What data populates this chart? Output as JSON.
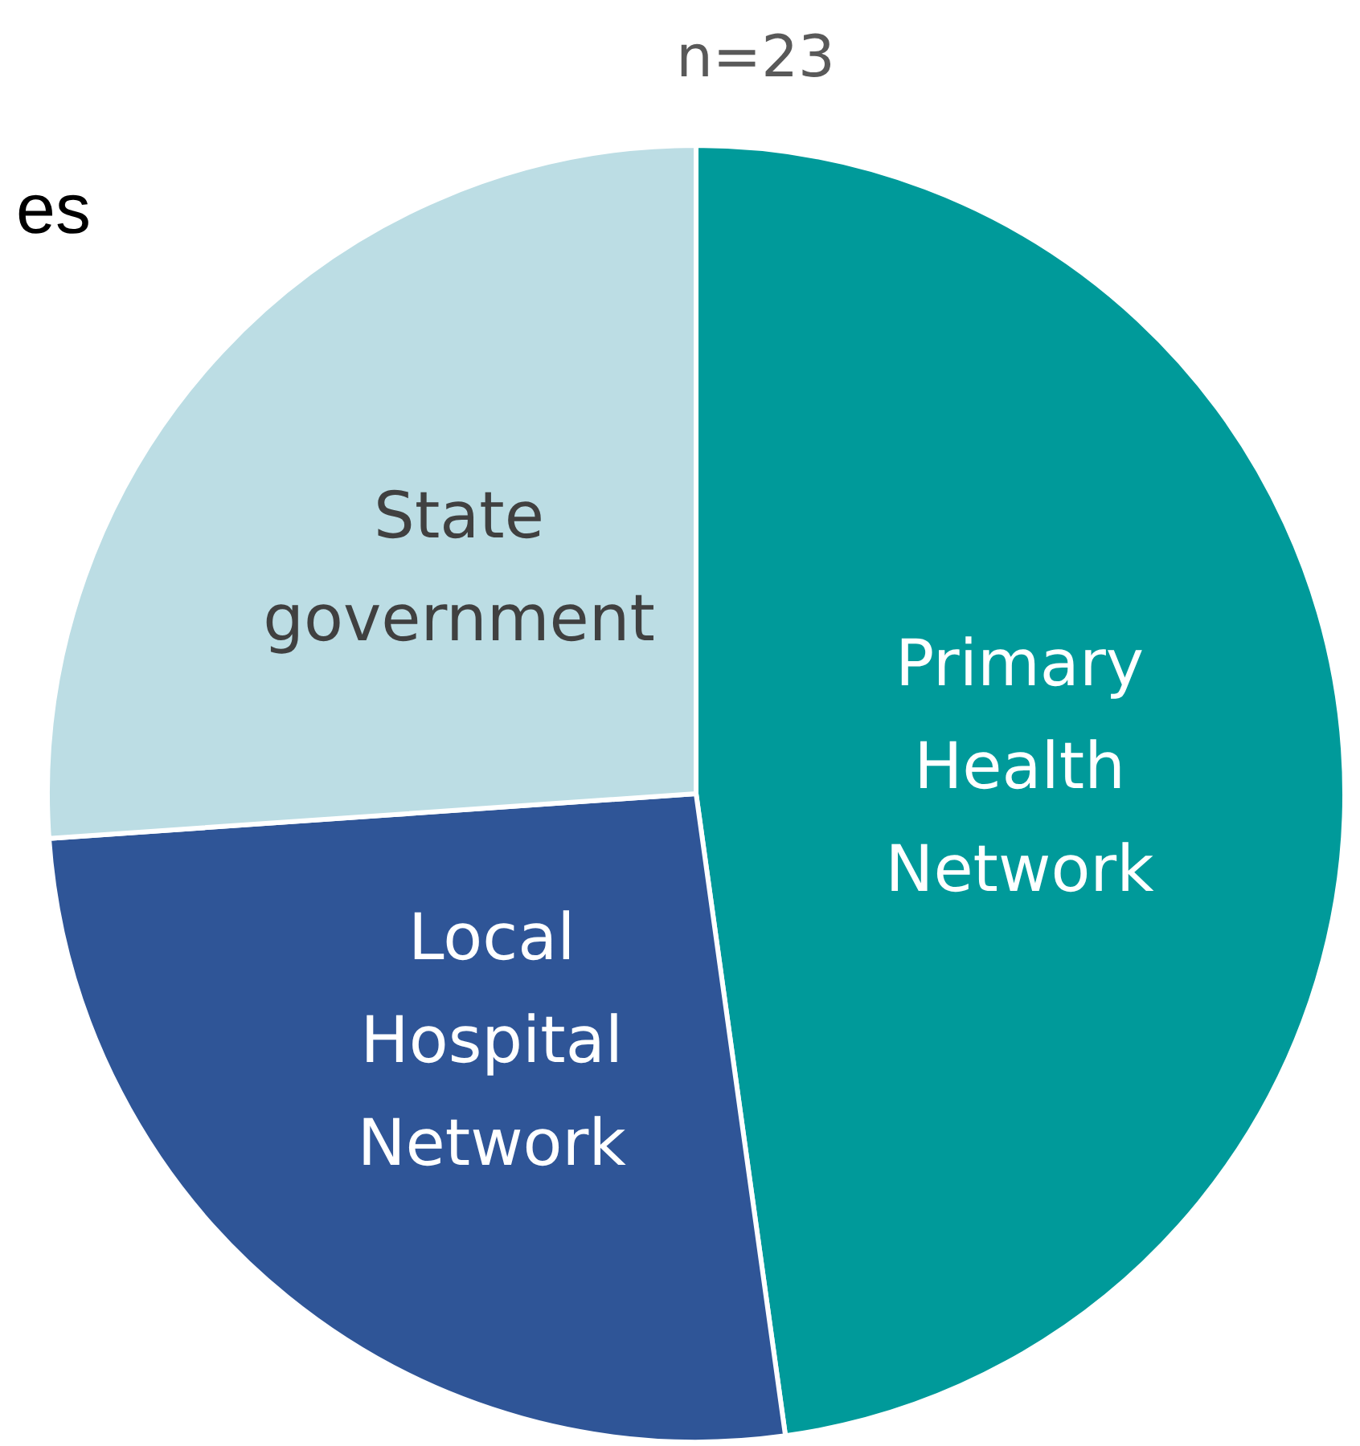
{
  "chart_data": {
    "type": "pie",
    "subtitle": "n=23",
    "annotations": [
      "es"
    ],
    "categories": [
      "Primary Health Network",
      "Local Hospital Network",
      "State government"
    ],
    "values": [
      47.8,
      26.1,
      26.1
    ],
    "colors": [
      "#009a9a",
      "#2f5597",
      "#bcdde4"
    ],
    "legend": false
  }
}
